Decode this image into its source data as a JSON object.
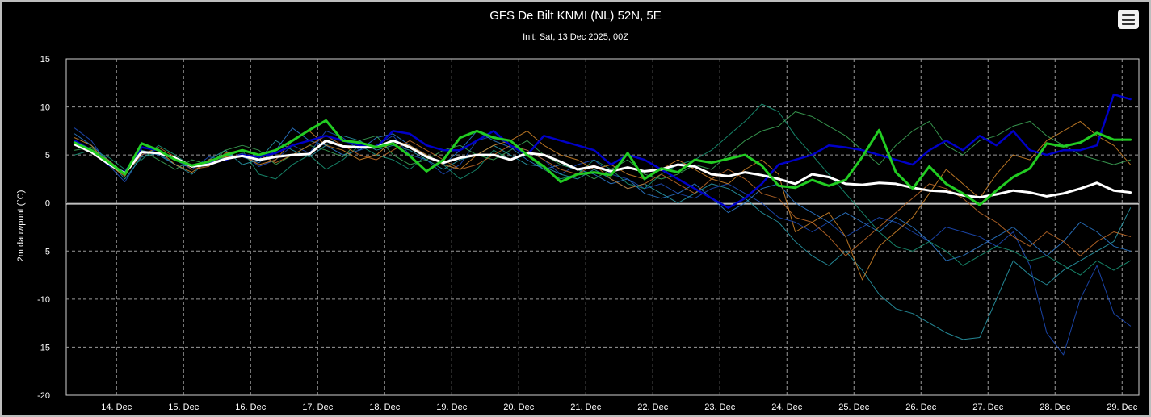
{
  "menu": {
    "icon": "hamburger-menu-icon"
  },
  "chart_data": {
    "type": "line",
    "title": "GFS De Bilt KNMI (NL) 52N, 5E",
    "subtitle": "Init: Sat, 13 Dec 2025, 00Z",
    "ylabel": "2m dauwpunt (°C)",
    "xlabel": "",
    "ylim": [
      -20,
      15
    ],
    "yticks": [
      15,
      10,
      5,
      0,
      -5,
      -10,
      -15,
      -20
    ],
    "xlim": [
      13.25,
      29.25
    ],
    "xticks": [
      {
        "x": 14,
        "label": "14. Dec"
      },
      {
        "x": 15,
        "label": "15. Dec"
      },
      {
        "x": 16,
        "label": "16. Dec"
      },
      {
        "x": 17,
        "label": "17. Dec"
      },
      {
        "x": 18,
        "label": "18. Dec"
      },
      {
        "x": 19,
        "label": "19. Dec"
      },
      {
        "x": 20,
        "label": "20. Dec"
      },
      {
        "x": 21,
        "label": "21. Dec"
      },
      {
        "x": 22,
        "label": "22. Dec"
      },
      {
        "x": 23,
        "label": "23. Dec"
      },
      {
        "x": 24,
        "label": "24. Dec"
      },
      {
        "x": 25,
        "label": "25. Dec"
      },
      {
        "x": 26,
        "label": "26. Dec"
      },
      {
        "x": 27,
        "label": "27. Dec"
      },
      {
        "x": 28,
        "label": "28. Dec"
      },
      {
        "x": 29,
        "label": "29. Dec"
      }
    ],
    "grid": true,
    "x": [
      13.375,
      13.625,
      13.875,
      14.125,
      14.375,
      14.625,
      14.875,
      15.125,
      15.375,
      15.625,
      15.875,
      16.125,
      16.375,
      16.625,
      16.875,
      17.125,
      17.375,
      17.625,
      17.875,
      18.125,
      18.375,
      18.625,
      18.875,
      19.125,
      19.375,
      19.625,
      19.875,
      20.125,
      20.375,
      20.625,
      20.875,
      21.125,
      21.375,
      21.625,
      21.875,
      22.125,
      22.375,
      22.625,
      22.875,
      23.125,
      23.375,
      23.625,
      23.875,
      24.125,
      24.375,
      24.625,
      24.875,
      25.125,
      25.375,
      25.625,
      25.875,
      26.125,
      26.375,
      26.625,
      26.875,
      27.125,
      27.375,
      27.625,
      27.875,
      28.125,
      28.375,
      28.625,
      28.875,
      29.125
    ],
    "series": [
      {
        "color": "#1f4fbf",
        "width": 1,
        "values": [
          7.8,
          6.5,
          4.0,
          2.2,
          5.0,
          5.6,
          4.5,
          3.5,
          4.8,
          4.5,
          5.2,
          3.8,
          4.5,
          6.0,
          5.2,
          7.5,
          6.8,
          5.5,
          6.0,
          7.0,
          5.0,
          4.5,
          3.0,
          4.0,
          6.5,
          7.0,
          6.0,
          5.5,
          4.5,
          3.0,
          4.0,
          4.5,
          3.0,
          2.5,
          1.5,
          2.0,
          1.0,
          0.5,
          1.5,
          2.0,
          1.0,
          0.0,
          -1.5,
          -2.0,
          -3.0,
          -2.0,
          -3.5,
          -2.5,
          -1.5,
          -2.0,
          -3.0,
          -4.0,
          -2.5,
          -3.0,
          -3.5,
          -4.5,
          -3.0,
          -6.5,
          -13.5,
          -15.8,
          -10.0,
          -6.5,
          -11.5,
          -12.8
        ]
      },
      {
        "color": "#2e7fd6",
        "width": 1,
        "values": [
          7.2,
          6.0,
          4.5,
          3.0,
          5.5,
          5.0,
          4.0,
          3.8,
          4.2,
          5.0,
          4.8,
          4.2,
          5.5,
          7.8,
          6.5,
          6.0,
          5.0,
          5.5,
          6.8,
          7.2,
          6.0,
          5.0,
          4.0,
          5.5,
          7.5,
          6.5,
          5.8,
          4.5,
          3.5,
          4.0,
          3.5,
          3.0,
          2.0,
          2.5,
          1.0,
          0.5,
          1.0,
          2.0,
          0.5,
          -1.0,
          0.0,
          1.5,
          2.0,
          0.0,
          -1.0,
          -2.0,
          -1.0,
          -2.0,
          -3.0,
          -1.5,
          -2.5,
          -4.0,
          -6.0,
          -5.5,
          -4.5,
          -3.5,
          -2.5,
          -4.0,
          -5.5,
          -4.0,
          -2.0,
          -3.0,
          -4.5,
          -5.0
        ]
      },
      {
        "color": "#2aa0b0",
        "width": 1,
        "values": [
          6.0,
          5.5,
          4.5,
          2.5,
          4.8,
          5.2,
          4.0,
          3.0,
          4.5,
          5.5,
          4.0,
          4.5,
          6.5,
          5.5,
          4.8,
          6.0,
          7.0,
          6.5,
          5.5,
          6.0,
          5.5,
          4.5,
          3.5,
          4.5,
          5.0,
          6.0,
          5.0,
          4.0,
          3.8,
          3.0,
          2.5,
          3.5,
          2.5,
          1.5,
          2.0,
          1.0,
          0.0,
          1.0,
          2.0,
          1.5,
          0.5,
          -1.0,
          -2.0,
          -4.0,
          -5.5,
          -6.5,
          -5.0,
          -7.0,
          -9.5,
          -11.0,
          -11.5,
          -12.5,
          -13.5,
          -14.2,
          -14.0,
          -10.0,
          -6.0,
          -7.5,
          -8.5,
          -7.0,
          -6.0,
          -5.0,
          -4.0,
          -0.5
        ]
      },
      {
        "color": "#1a9a7a",
        "width": 1,
        "values": [
          5.0,
          5.5,
          4.8,
          3.5,
          4.5,
          6.0,
          5.0,
          3.8,
          4.0,
          4.8,
          5.5,
          3.0,
          2.5,
          4.0,
          5.0,
          3.5,
          4.5,
          6.0,
          5.0,
          4.5,
          3.5,
          5.0,
          4.0,
          2.5,
          3.5,
          5.5,
          4.5,
          5.0,
          3.5,
          2.5,
          3.0,
          4.5,
          3.5,
          2.0,
          1.5,
          3.0,
          4.0,
          4.5,
          5.5,
          7.0,
          8.5,
          10.3,
          9.5,
          7.0,
          5.0,
          3.0,
          1.0,
          -1.0,
          -3.0,
          -4.5,
          -5.0,
          -4.0,
          -5.0,
          -6.5,
          -5.5,
          -4.5,
          -5.0,
          -6.0,
          -5.5,
          -6.5,
          -7.5,
          -6.0,
          -7.0,
          -6.0
        ]
      },
      {
        "color": "#3fae5a",
        "width": 1,
        "values": [
          5.5,
          5.8,
          4.2,
          3.2,
          5.5,
          4.5,
          3.5,
          4.5,
          4.0,
          5.5,
          6.0,
          5.5,
          4.0,
          5.0,
          6.0,
          5.5,
          4.8,
          6.5,
          7.0,
          5.0,
          4.0,
          4.5,
          5.5,
          6.0,
          5.0,
          4.5,
          5.5,
          6.5,
          5.0,
          4.0,
          3.5,
          2.5,
          3.5,
          4.5,
          3.0,
          2.5,
          3.0,
          4.0,
          3.5,
          5.0,
          6.5,
          7.5,
          8.0,
          9.5,
          9.0,
          8.0,
          7.0,
          5.5,
          4.0,
          6.0,
          7.5,
          8.5,
          6.0,
          5.0,
          6.5,
          7.0,
          8.0,
          8.5,
          7.0,
          6.0,
          5.0,
          4.5,
          4.0,
          4.5
        ]
      },
      {
        "color": "#d98a2a",
        "width": 1,
        "values": [
          6.8,
          6.0,
          4.0,
          2.8,
          5.8,
          5.5,
          4.0,
          3.2,
          4.5,
          4.8,
          5.0,
          4.0,
          4.5,
          6.5,
          7.5,
          6.0,
          5.5,
          4.5,
          5.0,
          6.5,
          6.0,
          5.0,
          4.0,
          3.5,
          5.0,
          6.0,
          6.5,
          7.5,
          6.0,
          5.0,
          4.5,
          3.5,
          4.0,
          3.0,
          2.5,
          3.5,
          4.5,
          3.5,
          2.5,
          2.0,
          3.5,
          4.5,
          3.0,
          -3.0,
          -2.0,
          -1.0,
          -3.5,
          -8.0,
          -4.5,
          -3.0,
          -1.5,
          1.0,
          3.5,
          2.0,
          0.5,
          3.0,
          5.0,
          4.5,
          6.5,
          7.5,
          8.5,
          7.0,
          6.0,
          4.0
        ]
      },
      {
        "color": "#c8702a",
        "width": 1,
        "values": [
          6.2,
          5.5,
          4.5,
          3.0,
          5.0,
          5.8,
          4.8,
          3.5,
          3.8,
          5.2,
          5.5,
          5.0,
          4.2,
          5.0,
          6.0,
          7.0,
          6.0,
          5.0,
          4.5,
          5.5,
          6.5,
          5.5,
          4.5,
          3.5,
          4.0,
          5.0,
          6.0,
          5.5,
          4.5,
          3.5,
          3.0,
          4.0,
          2.5,
          1.5,
          2.0,
          3.0,
          2.0,
          1.0,
          2.5,
          3.5,
          2.5,
          1.0,
          0.5,
          -1.5,
          -2.0,
          -3.5,
          -5.5,
          -4.0,
          -2.5,
          -1.0,
          0.5,
          2.0,
          1.5,
          0.5,
          -1.0,
          -2.0,
          -3.5,
          -4.5,
          -3.0,
          -4.0,
          -5.5,
          -4.0,
          -3.0,
          -3.5
        ]
      },
      {
        "color": "#0000c8",
        "width": 2.5,
        "values": [
          6.5,
          5.5,
          4.0,
          3.2,
          5.8,
          5.5,
          4.5,
          3.8,
          4.2,
          4.5,
          5.0,
          4.8,
          5.2,
          6.0,
          6.5,
          7.0,
          6.5,
          6.0,
          5.8,
          7.5,
          7.2,
          6.0,
          5.5,
          5.5,
          6.5,
          7.5,
          6.0,
          5.0,
          7.0,
          6.5,
          6.0,
          5.5,
          4.0,
          5.0,
          4.5,
          3.5,
          2.5,
          1.5,
          0.5,
          -0.5,
          0.5,
          2.0,
          4.0,
          4.5,
          5.0,
          6.0,
          5.8,
          5.5,
          5.0,
          4.5,
          4.0,
          5.5,
          6.5,
          5.5,
          7.0,
          6.0,
          7.5,
          5.5,
          5.0,
          5.5,
          5.5,
          6.0,
          11.3,
          10.8
        ]
      },
      {
        "color": "#ffffff",
        "width": 3,
        "values": [
          6.1,
          5.3,
          4.1,
          3.1,
          5.3,
          5.2,
          4.7,
          3.8,
          4.0,
          4.6,
          4.9,
          4.5,
          4.8,
          5.0,
          5.1,
          6.5,
          5.9,
          5.8,
          5.8,
          6.5,
          5.8,
          4.8,
          4.2,
          4.7,
          5.0,
          5.0,
          4.5,
          5.2,
          5.0,
          4.3,
          3.5,
          3.8,
          3.3,
          3.7,
          3.3,
          3.5,
          4.0,
          3.8,
          3.0,
          2.8,
          3.2,
          2.9,
          2.5,
          2.0,
          3.0,
          2.7,
          2.0,
          1.9,
          2.1,
          2.0,
          1.6,
          1.3,
          1.2,
          0.8,
          0.6,
          0.9,
          1.3,
          1.1,
          0.7,
          1.0,
          1.5,
          2.1,
          1.3,
          1.1
        ]
      },
      {
        "color": "#22cc22",
        "width": 3,
        "values": [
          6.3,
          5.5,
          4.3,
          3.0,
          6.2,
          5.5,
          4.5,
          3.9,
          4.3,
          5.0,
          5.5,
          5.0,
          5.5,
          6.5,
          7.6,
          8.6,
          6.5,
          6.3,
          5.8,
          6.2,
          4.9,
          3.3,
          4.5,
          6.8,
          7.5,
          6.8,
          6.5,
          5.0,
          3.8,
          2.2,
          3.0,
          3.2,
          2.9,
          5.2,
          2.5,
          3.6,
          3.2,
          4.5,
          4.2,
          4.6,
          5.0,
          3.9,
          1.8,
          1.6,
          2.4,
          1.8,
          2.4,
          4.8,
          7.6,
          3.2,
          1.5,
          3.8,
          2.0,
          1.0,
          -0.2,
          1.3,
          2.7,
          3.6,
          6.2,
          5.9,
          6.3,
          7.3,
          6.6,
          6.6
        ]
      }
    ]
  }
}
